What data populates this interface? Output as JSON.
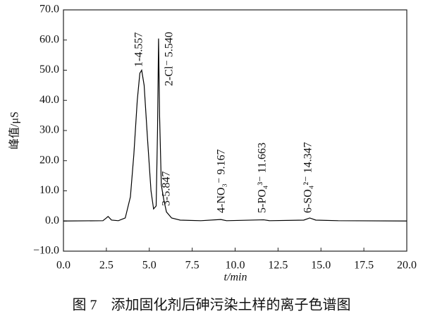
{
  "chart_data": {
    "type": "line",
    "caption": "图 7　添加固化剂后砷污染土样的离子色谱图",
    "xlabel": "t/min",
    "ylabel": "峰值/μS",
    "annotations": [
      "1-4.557",
      "2-Cl⁻ 5.540",
      "3-5.847",
      "4-NO₃⁻ 9.167",
      "5-PO₄³⁻ 11.663",
      "6-SO₄²⁻ 14.347"
    ],
    "x": [
      0,
      2.3,
      2.5,
      2.6,
      2.8,
      3.2,
      3.6,
      3.9,
      4.1,
      4.3,
      4.45,
      4.557,
      4.7,
      4.9,
      5.1,
      5.25,
      5.4,
      5.48,
      5.54,
      5.6,
      5.7,
      5.847,
      6.0,
      6.3,
      6.8,
      8,
      9.167,
      9.5,
      11.663,
      12,
      14.0,
      14.347,
      14.7,
      16,
      20
    ],
    "series": [
      {
        "color": "#000000",
        "values": [
          0,
          0.1,
          1.0,
          1.5,
          0.3,
          0.1,
          1.0,
          8,
          22,
          40,
          49,
          50,
          45,
          27,
          10,
          4,
          5,
          30,
          60.5,
          35,
          12,
          7,
          3,
          1,
          0.3,
          0.1,
          0.5,
          0.1,
          0.4,
          0.1,
          0.3,
          1.0,
          0.3,
          0.1,
          0
        ]
      }
    ],
    "xlim": [
      0,
      20
    ],
    "xticks": [
      {
        "value": 0,
        "label": "0.0"
      },
      {
        "value": 2.5,
        "label": "2.5"
      },
      {
        "value": 5,
        "label": "5.0"
      },
      {
        "value": 7.5,
        "label": "7.5"
      },
      {
        "value": 10,
        "label": "10.0"
      },
      {
        "value": 12.5,
        "label": "12.5"
      },
      {
        "value": 15,
        "label": "15.0"
      },
      {
        "value": 17.5,
        "label": "17.5"
      },
      {
        "value": 20,
        "label": "20.0"
      }
    ],
    "ylim": [
      -10,
      70
    ],
    "yticks": [
      {
        "value": -10,
        "label": "−10.0"
      },
      {
        "value": 0,
        "label": "0.0"
      },
      {
        "value": 10,
        "label": "10.0"
      },
      {
        "value": 20,
        "label": "20.0"
      },
      {
        "value": 30,
        "label": "30.0"
      },
      {
        "value": 40,
        "label": "40.0"
      },
      {
        "value": 50,
        "label": "50.0"
      },
      {
        "value": 60,
        "label": "60.0"
      },
      {
        "value": 70,
        "label": "70.0"
      }
    ],
    "grid": false
  }
}
